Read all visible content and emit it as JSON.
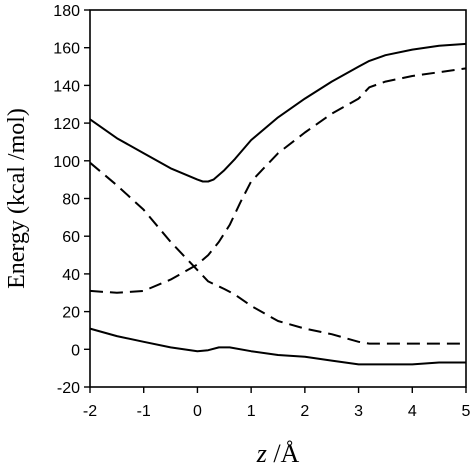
{
  "chart_data": {
    "type": "line",
    "title": "",
    "xlabel_var": "z",
    "xlabel_unit": " /Å",
    "ylabel": "Energy (kcal /mol)",
    "xlim": [
      -2,
      5
    ],
    "ylim": [
      -20,
      180
    ],
    "xticks": [
      -2,
      -1,
      0,
      1,
      2,
      3,
      4,
      5
    ],
    "yticks": [
      -20,
      0,
      20,
      40,
      60,
      80,
      100,
      120,
      140,
      160,
      180
    ],
    "grid": false,
    "legend": "none",
    "series": [
      {
        "style": "solid",
        "color": "#000000",
        "x": [
          -2,
          -1.5,
          -1,
          -0.5,
          0,
          0.1,
          0.2,
          0.3,
          0.5,
          0.7,
          1,
          1.5,
          2,
          2.5,
          3,
          3.2,
          3.5,
          4,
          4.5,
          5
        ],
        "y": [
          122,
          112,
          104,
          96,
          90,
          89,
          89,
          90,
          95,
          101,
          111,
          123,
          133,
          142,
          150,
          153,
          156,
          159,
          161,
          162
        ]
      },
      {
        "style": "dashed",
        "color": "#000000",
        "x": [
          -2,
          -1.5,
          -1,
          -0.5,
          0,
          0.2,
          0.4,
          0.6,
          0.8,
          1,
          1.5,
          2,
          2.5,
          3,
          3.2,
          3.5,
          4,
          4.5,
          5
        ],
        "y": [
          31,
          30,
          31,
          37,
          45,
          50,
          57,
          66,
          78,
          89,
          104,
          115,
          125,
          133,
          139,
          142,
          145,
          147,
          149
        ]
      },
      {
        "style": "dashed",
        "color": "#000000",
        "x": [
          -2,
          -1.5,
          -1,
          -0.5,
          0,
          0.2,
          0.5,
          0.7,
          1,
          1.5,
          2,
          2.5,
          3,
          3.2,
          3.5,
          4,
          4.5,
          5
        ],
        "y": [
          99,
          87,
          74,
          57,
          42,
          36,
          32,
          29,
          23,
          15,
          11,
          8,
          4,
          3,
          3,
          3,
          3,
          3
        ]
      },
      {
        "style": "solid",
        "color": "#000000",
        "x": [
          -2,
          -1.5,
          -1,
          -0.5,
          0,
          0.2,
          0.4,
          0.6,
          1,
          1.5,
          2,
          2.5,
          3,
          3.2,
          3.5,
          4,
          4.5,
          5
        ],
        "y": [
          11,
          7,
          4,
          1,
          -1,
          -0.5,
          1,
          1,
          -1,
          -3,
          -4,
          -6,
          -8,
          -8,
          -8,
          -8,
          -7,
          -7
        ]
      }
    ]
  }
}
